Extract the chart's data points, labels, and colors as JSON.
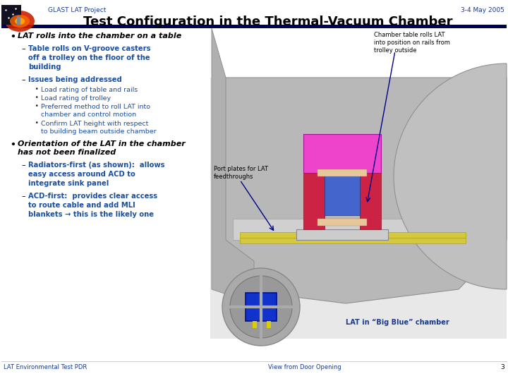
{
  "title": "Test Configuration in the Thermal-Vacuum Chamber",
  "header_left": "GLAST LAT Project",
  "header_right": "3-4 May 2005",
  "footer_left": "LAT Environmental Test PDR",
  "footer_right": "View from Door Opening",
  "footer_page": "3",
  "bg_color": "#ffffff",
  "header_color": "#1a3a8a",
  "sub_bullet_color": "#1a4fa0",
  "footer_color": "#1a3a8a",
  "annotation_top_right": "Chamber table rolls LAT\ninto position on rails from\ntrolley outside",
  "annotation_mid": "Port plates for LAT\nfeedthroughs",
  "annotation_bottom": "LAT in “Big Blue” chamber"
}
